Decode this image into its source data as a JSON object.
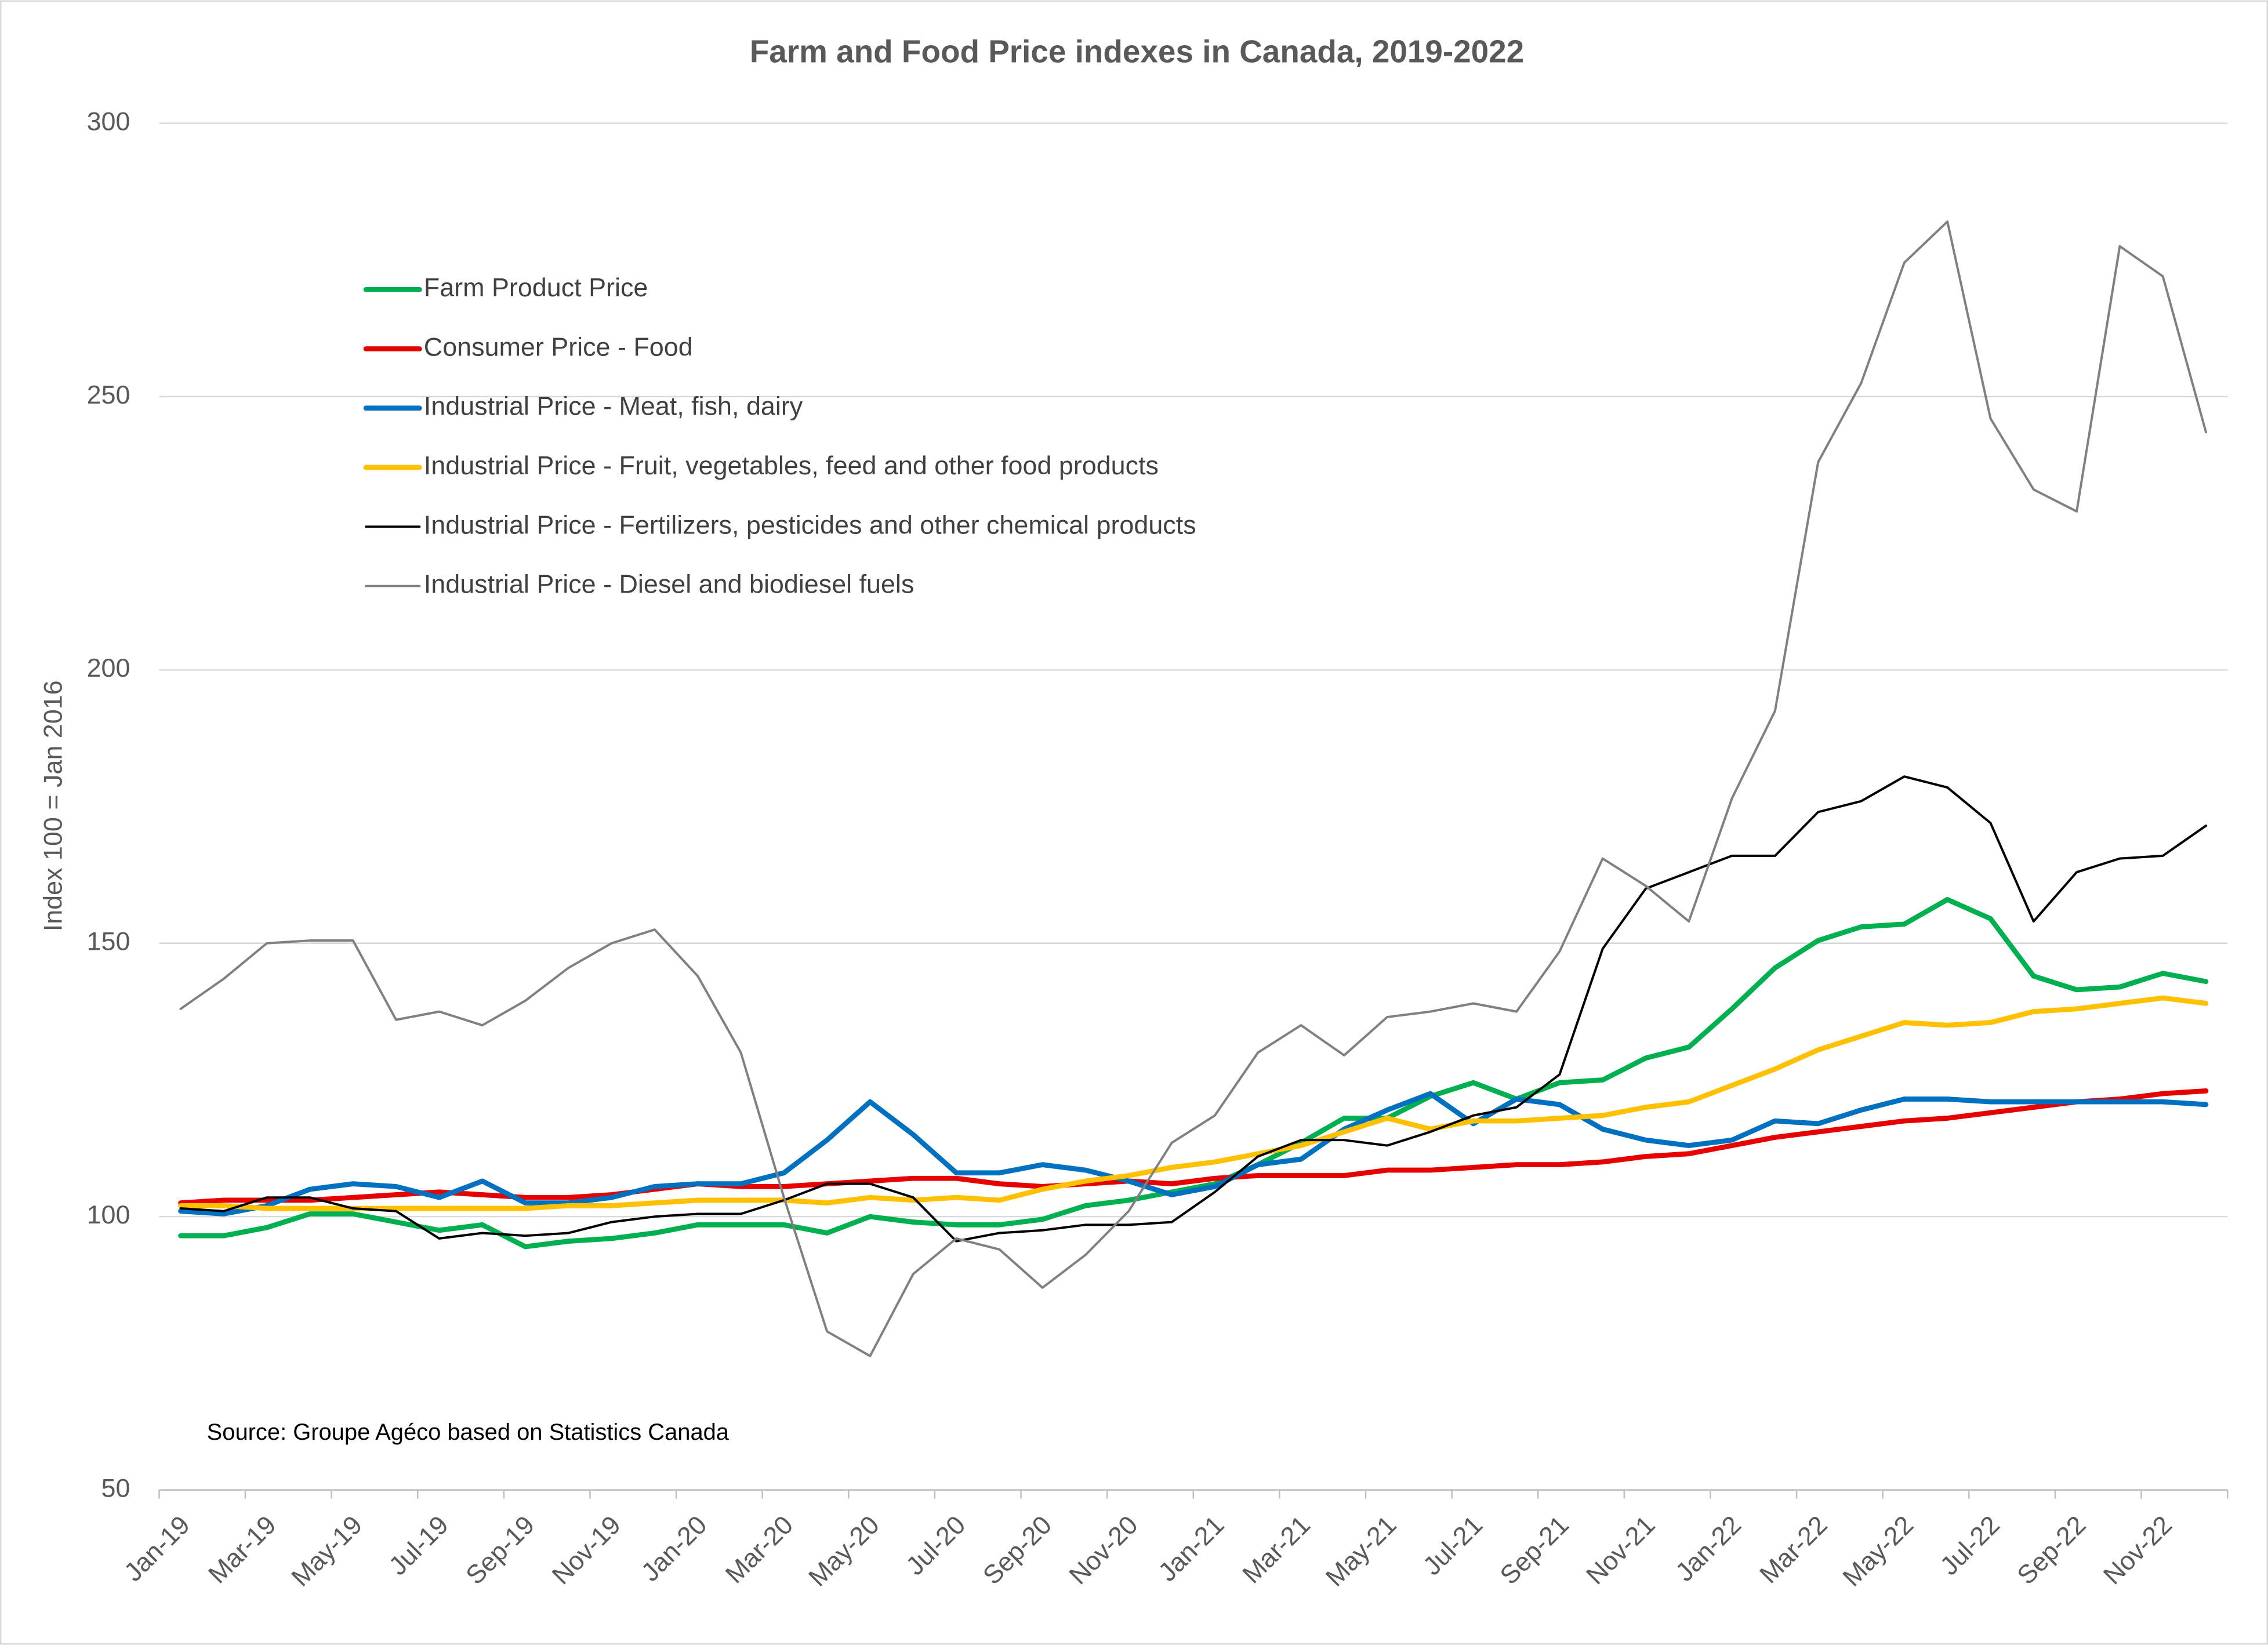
{
  "chart_data": {
    "type": "line",
    "title": "Farm and Food Price indexes in Canada, 2019-2022",
    "y_label": "Index 100 = Jan 2016",
    "annotation": "Source: Groupe Agéco based on Statistics Canada",
    "categories": [
      "Jan-19",
      null,
      "Mar-19",
      null,
      "May-19",
      null,
      "Jul-19",
      null,
      "Sep-19",
      null,
      "Nov-19",
      null,
      "Jan-20",
      null,
      "Mar-20",
      null,
      "May-20",
      null,
      "Jul-20",
      null,
      "Sep-20",
      null,
      "Nov-20",
      null,
      "Jan-21",
      null,
      "Mar-21",
      null,
      "May-21",
      null,
      "Jul-21",
      null,
      "Sep-21",
      null,
      "Nov-21",
      null,
      "Jan-22",
      null,
      "Mar-22",
      null,
      "May-22",
      null,
      "Jul-22",
      null,
      "Sep-22",
      null,
      "Nov-22",
      null
    ],
    "ylim": [
      50,
      300
    ],
    "yticks": [
      50,
      100,
      150,
      200,
      250,
      300
    ],
    "grid": true,
    "legend": "upper left",
    "series": [
      {
        "name": "Farm Product Price",
        "color": "#00b050",
        "values": [
          96.5,
          96.5,
          98,
          100.5,
          100.5,
          99,
          97.5,
          98.5,
          94.5,
          95.5,
          96,
          97,
          98.5,
          98.5,
          98.5,
          97,
          100,
          99,
          98.5,
          98.5,
          99.5,
          102,
          103,
          104.5,
          106,
          109.5,
          113.5,
          118,
          118,
          122,
          124.5,
          121.5,
          124.5,
          125,
          129,
          131,
          138,
          145.5,
          150.5,
          153,
          153.5,
          158,
          154.5,
          144,
          141.5,
          142,
          144.5,
          143
        ]
      },
      {
        "name": "Consumer Price - Food",
        "color": "#e60000",
        "values": [
          102.5,
          103,
          103,
          103,
          103.5,
          104,
          104.5,
          104,
          103.5,
          103.5,
          104,
          105,
          106,
          105.5,
          105.5,
          106,
          106.5,
          107,
          107,
          106,
          105.5,
          106,
          106.5,
          106,
          107,
          107.5,
          107.5,
          107.5,
          108.5,
          108.5,
          109,
          109.5,
          109.5,
          110,
          111,
          111.5,
          113,
          114.5,
          115.5,
          116.5,
          117.5,
          118,
          119,
          120,
          121,
          121.5,
          122.5,
          123
        ]
      },
      {
        "name": "Industrial Price - Meat, fish, dairy",
        "color": "#0070c0",
        "values": [
          101,
          100.5,
          102,
          105,
          106,
          105.5,
          103.5,
          106.5,
          102.5,
          102.5,
          103.5,
          105.5,
          106,
          106,
          108,
          114,
          121,
          115,
          108,
          108,
          109.5,
          108.5,
          106.5,
          104,
          105.5,
          109.5,
          110.5,
          116,
          119.5,
          122.5,
          117,
          121.5,
          120.5,
          116,
          114,
          113,
          114,
          117.5,
          117,
          119.5,
          121.5,
          121.5,
          121,
          121,
          121,
          121,
          121,
          120.5
        ]
      },
      {
        "name": "Industrial Price - Fruit, vegetables, feed and other food products",
        "color": "#ffc000",
        "values": [
          102,
          102,
          101.5,
          101.5,
          101.5,
          101.5,
          101.5,
          101.5,
          101.5,
          102,
          102,
          102.5,
          103,
          103,
          103,
          102.5,
          103.5,
          103,
          103.5,
          103,
          105,
          106.5,
          107.5,
          109,
          110,
          111.5,
          113,
          115.5,
          118,
          116,
          117.5,
          117.5,
          118,
          118.5,
          120,
          121,
          124,
          127,
          130.5,
          133,
          135.5,
          135,
          135.5,
          137.5,
          138,
          139,
          140,
          139
        ]
      },
      {
        "name": "Industrial Price - Fertilizers, pesticides and other chemical products",
        "color": "#000000",
        "values": [
          101.5,
          101,
          103.5,
          103.5,
          101.5,
          101,
          96,
          97,
          96.5,
          97,
          99,
          100,
          100.5,
          100.5,
          103,
          106,
          106,
          103.5,
          95.5,
          97,
          97.5,
          98.5,
          98.5,
          99,
          104.5,
          111,
          114,
          114,
          113,
          115.5,
          118.5,
          120,
          126,
          149,
          160,
          163,
          166,
          166,
          174,
          176,
          180.5,
          178.5,
          172,
          154,
          163,
          165.5,
          166,
          171.5
        ]
      },
      {
        "name": "Industrial Price - Diesel and biodiesel fuels",
        "color": "#808080",
        "values": [
          138,
          143.5,
          150,
          150.5,
          150.5,
          136,
          137.5,
          135,
          139.5,
          145.5,
          150,
          152.5,
          144,
          130,
          103.5,
          79,
          74.5,
          89.5,
          96,
          94,
          87,
          93,
          101,
          113.5,
          118.5,
          130,
          135,
          129.5,
          136.5,
          137.5,
          139,
          137.5,
          148.5,
          165.5,
          160.5,
          154,
          176.5,
          192.5,
          238,
          252.5,
          274.5,
          282,
          246,
          233,
          229,
          277.5,
          272,
          243.5
        ]
      }
    ]
  }
}
